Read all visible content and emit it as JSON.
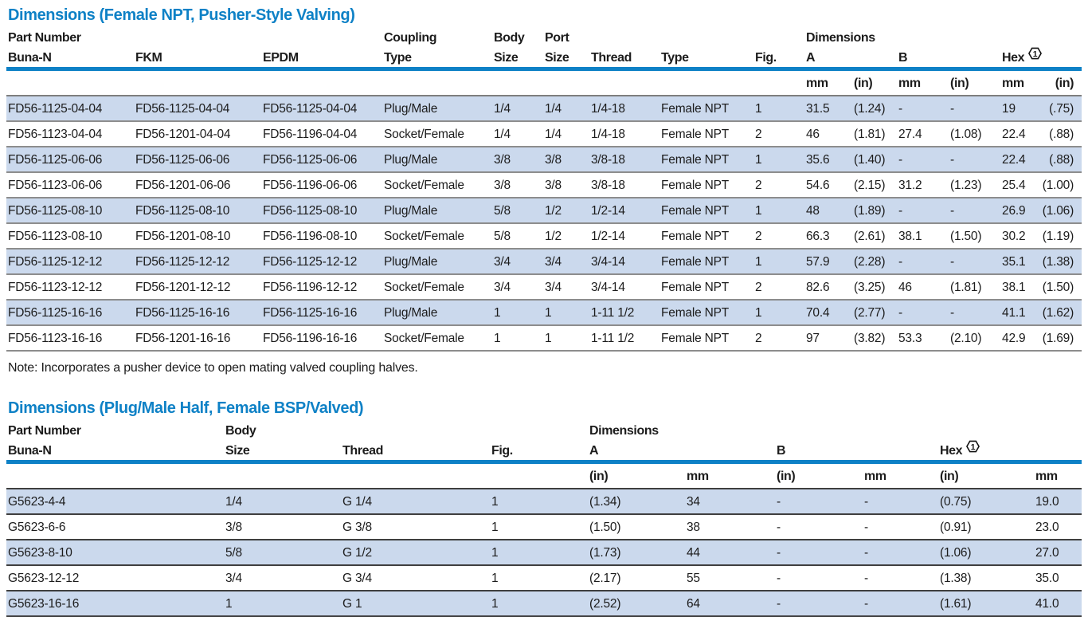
{
  "colors": {
    "accent_blue": "#0e81c6",
    "row_stripe_blue": "#cbd9ed"
  },
  "table1": {
    "title": "Dimensions (Female NPT, Pusher-Style Valving)",
    "headers": {
      "part_number": "Part Number",
      "buna": "Buna-N",
      "fkm": "FKM",
      "epdm": "EPDM",
      "coupling_line1": "Coupling",
      "coupling_line2": "Type",
      "body_line1": "Body",
      "body_line2": "Size",
      "port_line1": "Port",
      "port_line2": "Size",
      "thread": "Thread",
      "type": "Type",
      "fig": "Fig.",
      "dimensions": "Dimensions",
      "a": "A",
      "b": "B",
      "hex": "Hex",
      "hex_mark": "1",
      "units": [
        "mm",
        "(in)",
        "mm",
        "(in)",
        "mm",
        "(in)"
      ]
    },
    "rows": [
      [
        "FD56-1125-04-04",
        "FD56-1125-04-04",
        "FD56-1125-04-04",
        "Plug/Male",
        "1/4",
        "1/4",
        "1/4-18",
        "Female NPT",
        "1",
        "31.5",
        "(1.24)",
        "-",
        "-",
        "19",
        "(.75)"
      ],
      [
        "FD56-1123-04-04",
        "FD56-1201-04-04",
        "FD56-1196-04-04",
        "Socket/Female",
        "1/4",
        "1/4",
        "1/4-18",
        "Female NPT",
        "2",
        "46",
        "(1.81)",
        "27.4",
        "(1.08)",
        "22.4",
        "(.88)"
      ],
      [
        "FD56-1125-06-06",
        "FD56-1125-06-06",
        "FD56-1125-06-06",
        "Plug/Male",
        "3/8",
        "3/8",
        "3/8-18",
        "Female NPT",
        "1",
        "35.6",
        "(1.40)",
        "-",
        "-",
        "22.4",
        "(.88)"
      ],
      [
        "FD56-1123-06-06",
        "FD56-1201-06-06",
        "FD56-1196-06-06",
        "Socket/Female",
        "3/8",
        "3/8",
        "3/8-18",
        "Female NPT",
        "2",
        "54.6",
        "(2.15)",
        "31.2",
        "(1.23)",
        "25.4",
        "(1.00)"
      ],
      [
        "FD56-1125-08-10",
        "FD56-1125-08-10",
        "FD56-1125-08-10",
        "Plug/Male",
        "5/8",
        "1/2",
        "1/2-14",
        "Female NPT",
        "1",
        "48",
        "(1.89)",
        "-",
        "-",
        "26.9",
        "(1.06)"
      ],
      [
        "FD56-1123-08-10",
        "FD56-1201-08-10",
        "FD56-1196-08-10",
        "Socket/Female",
        "5/8",
        "1/2",
        "1/2-14",
        "Female NPT",
        "2",
        "66.3",
        "(2.61)",
        "38.1",
        "(1.50)",
        "30.2",
        "(1.19)"
      ],
      [
        "FD56-1125-12-12",
        "FD56-1125-12-12",
        "FD56-1125-12-12",
        "Plug/Male",
        "3/4",
        "3/4",
        "3/4-14",
        "Female NPT",
        "1",
        "57.9",
        "(2.28)",
        "-",
        "-",
        "35.1",
        "(1.38)"
      ],
      [
        "FD56-1123-12-12",
        "FD56-1201-12-12",
        "FD56-1196-12-12",
        "Socket/Female",
        "3/4",
        "3/4",
        "3/4-14",
        "Female NPT",
        "2",
        "82.6",
        "(3.25)",
        "46",
        "(1.81)",
        "38.1",
        "(1.50)"
      ],
      [
        "FD56-1125-16-16",
        "FD56-1125-16-16",
        "FD56-1125-16-16",
        "Plug/Male",
        "1",
        "1",
        "1-11 1/2",
        "Female NPT",
        "1",
        "70.4",
        "(2.77)",
        "-",
        "-",
        "41.1",
        "(1.62)"
      ],
      [
        "FD56-1123-16-16",
        "FD56-1201-16-16",
        "FD56-1196-16-16",
        "Socket/Female",
        "1",
        "1",
        "1-11 1/2",
        "Female NPT",
        "2",
        "97",
        "(3.82)",
        "53.3",
        "(2.10)",
        "42.9",
        "(1.69)"
      ]
    ]
  },
  "note": "Note: Incorporates a pusher device to open mating valved coupling halves.",
  "table2": {
    "title": "Dimensions (Plug/Male Half, Female BSP/Valved)",
    "headers": {
      "part_number": "Part Number",
      "buna": "Buna-N",
      "body_line1": "Body",
      "body_line2": "Size",
      "thread": "Thread",
      "fig": "Fig.",
      "dimensions": "Dimensions",
      "a": "A",
      "b": "B",
      "hex": "Hex",
      "hex_mark": "1",
      "units": [
        "(in)",
        "mm",
        "(in)",
        "mm",
        "(in)",
        "mm"
      ]
    },
    "rows": [
      [
        "G5623-4-4",
        "1/4",
        "G 1/4",
        "1",
        "(1.34)",
        "34",
        "-",
        "-",
        "(0.75)",
        "19.0"
      ],
      [
        "G5623-6-6",
        "3/8",
        "G 3/8",
        "1",
        "(1.50)",
        "38",
        "-",
        "-",
        "(0.91)",
        "23.0"
      ],
      [
        "G5623-8-10",
        "5/8",
        "G 1/2",
        "1",
        "(1.73)",
        "44",
        "-",
        "-",
        "(1.06)",
        "27.0"
      ],
      [
        "G5623-12-12",
        "3/4",
        "G 3/4",
        "1",
        "(2.17)",
        "55",
        "-",
        "-",
        "(1.38)",
        "35.0"
      ],
      [
        "G5623-16-16",
        "1",
        "G 1",
        "1",
        "(2.52)",
        "64",
        "-",
        "-",
        "(1.61)",
        "41.0"
      ]
    ]
  }
}
